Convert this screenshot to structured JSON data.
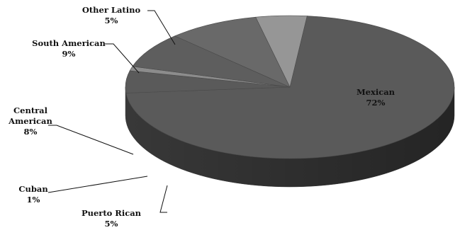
{
  "chart_data": {
    "type": "pie",
    "three_d": true,
    "legend": "none",
    "title": "",
    "slices": [
      {
        "name": "Mexican",
        "value": 72,
        "label_lines": [
          "Mexican",
          "72%"
        ],
        "color": "#5a5a5a"
      },
      {
        "name": "Puerto Rican",
        "value": 5,
        "label_lines": [
          "Puerto Rican",
          "5%"
        ],
        "color": "#5a5a5a"
      },
      {
        "name": "Cuban",
        "value": 1,
        "label_lines": [
          "Cuban",
          "1%"
        ],
        "color": "#8c8c8c"
      },
      {
        "name": "Central American",
        "value": 8,
        "label_lines": [
          "Central",
          "American",
          "8%"
        ],
        "color": "#5e5e5e"
      },
      {
        "name": "South American",
        "value": 9,
        "label_lines": [
          "South American",
          "9%"
        ],
        "color": "#696969"
      },
      {
        "name": "Other Latino",
        "value": 5,
        "label_lines": [
          "Other Latino",
          "5%"
        ],
        "color": "#969696"
      }
    ]
  }
}
